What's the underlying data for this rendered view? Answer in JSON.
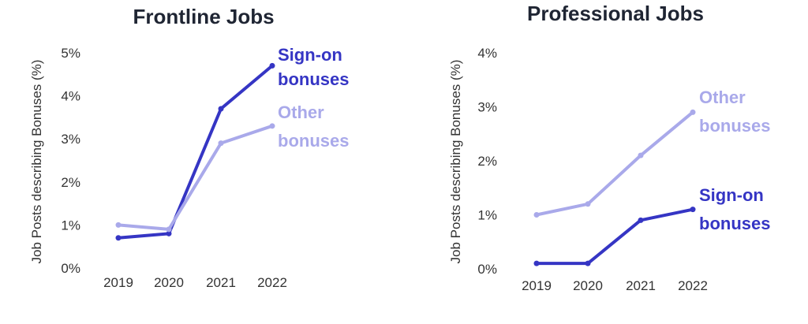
{
  "colors": {
    "sign_on": "#3535c4",
    "other": "#a9a9ea",
    "text": "#1f2533"
  },
  "chart_data": [
    {
      "type": "line",
      "title": "Frontline Jobs",
      "ylabel": "Job Posts describing Bonuses (%)",
      "xlabel": "",
      "categories": [
        "2019",
        "2020",
        "2021",
        "2022"
      ],
      "yticks": [
        "0%",
        "1%",
        "2%",
        "3%",
        "4%",
        "5%"
      ],
      "ylim": [
        0,
        5
      ],
      "grid": false,
      "series": [
        {
          "name": "Sign-on bonuses",
          "label_lines": [
            "Sign-on",
            "bonuses"
          ],
          "color_key": "sign_on",
          "values": [
            0.7,
            0.8,
            3.7,
            4.7
          ]
        },
        {
          "name": "Other bonuses",
          "label_lines": [
            "Other",
            "bonuses"
          ],
          "color_key": "other",
          "values": [
            1.0,
            0.9,
            2.9,
            3.3
          ]
        }
      ]
    },
    {
      "type": "line",
      "title": "Professional Jobs",
      "ylabel": "Job Posts describing Bonuses (%)",
      "xlabel": "",
      "categories": [
        "2019",
        "2020",
        "2021",
        "2022"
      ],
      "yticks": [
        "0%",
        "1%",
        "2%",
        "3%",
        "4%"
      ],
      "ylim": [
        0,
        4
      ],
      "grid": false,
      "series": [
        {
          "name": "Other bonuses",
          "label_lines": [
            "Other",
            "bonuses"
          ],
          "color_key": "other",
          "values": [
            1.0,
            1.2,
            2.1,
            2.9
          ]
        },
        {
          "name": "Sign-on bonuses",
          "label_lines": [
            "Sign-on",
            "bonuses"
          ],
          "color_key": "sign_on",
          "values": [
            0.1,
            0.1,
            0.9,
            1.1
          ]
        }
      ]
    }
  ]
}
